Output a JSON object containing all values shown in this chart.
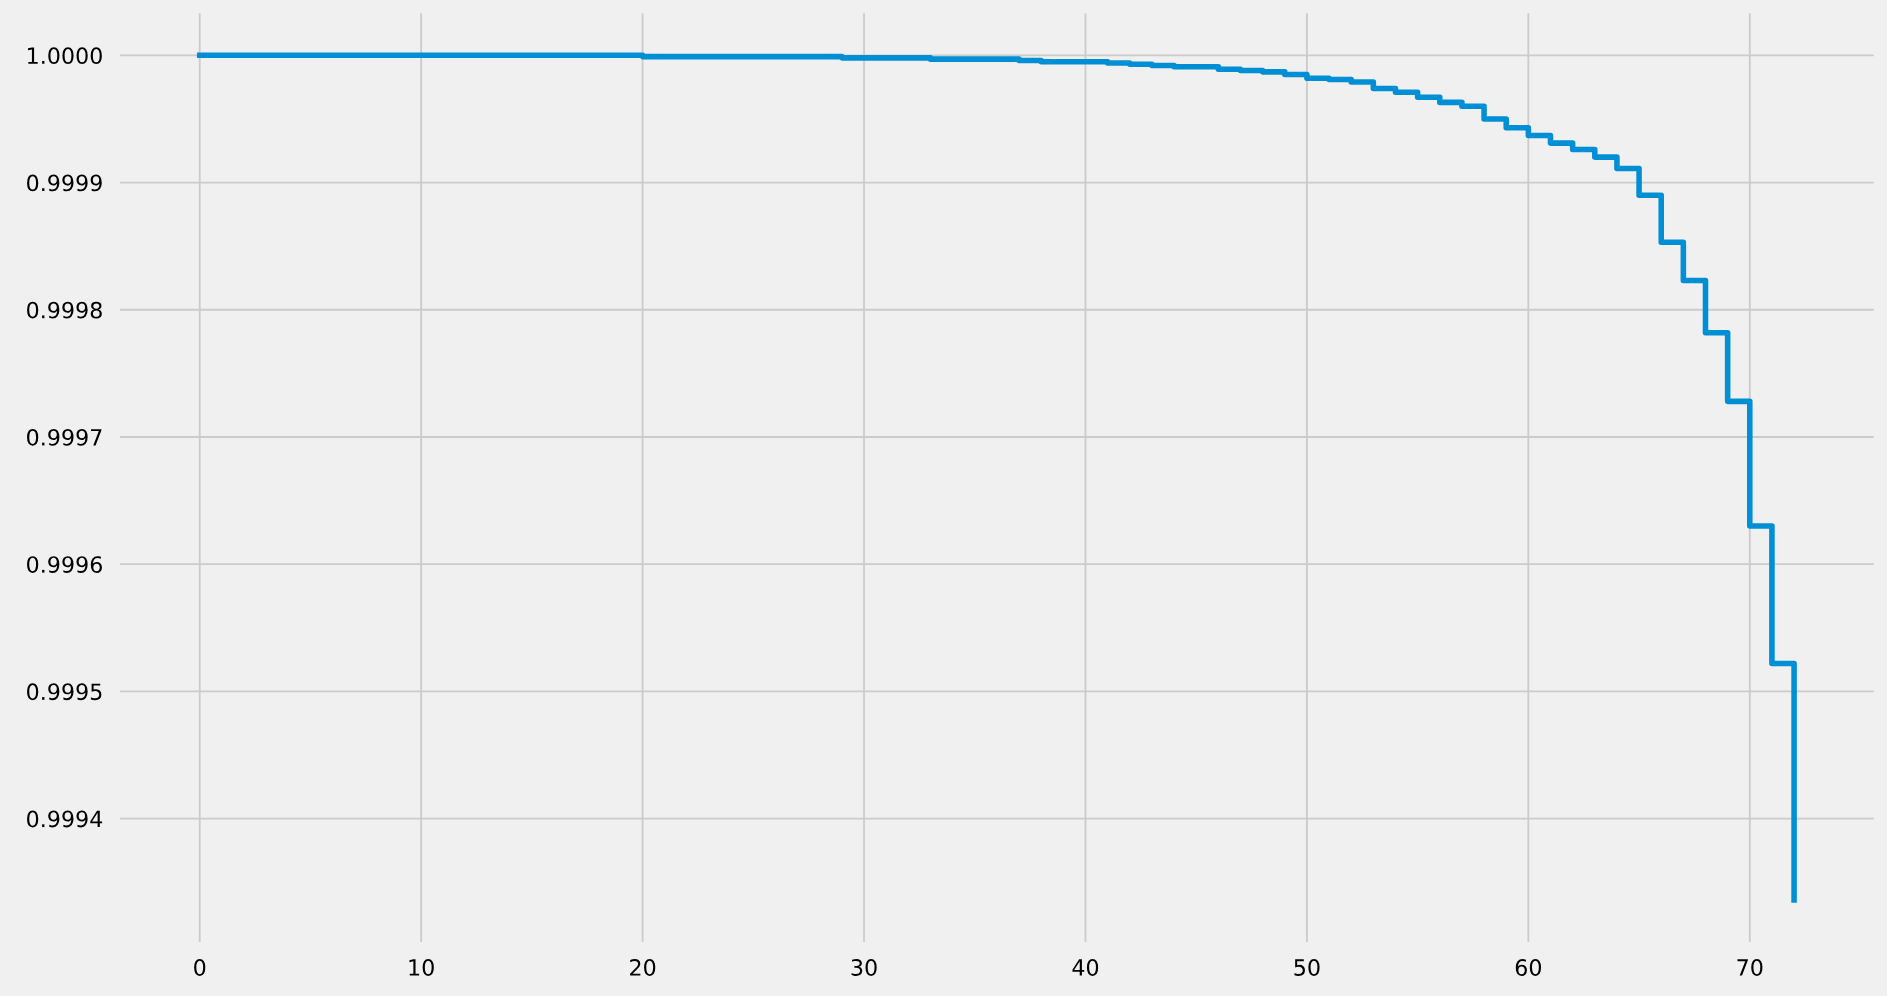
{
  "chart_data": {
    "type": "step",
    "x": [
      0,
      20,
      29,
      33,
      37,
      38,
      41,
      42,
      43,
      44,
      46,
      47,
      48,
      49,
      50,
      51,
      52,
      53,
      54,
      55,
      56,
      57,
      58,
      59,
      60,
      61,
      62,
      63,
      64,
      65,
      66,
      67,
      68,
      69,
      70,
      71,
      72
    ],
    "series": [
      {
        "color": "#008fd5",
        "values": [
          1.0,
          0.999999,
          0.999998,
          0.999997,
          0.999996,
          0.999995,
          0.999994,
          0.999993,
          0.999992,
          0.999991,
          0.999989,
          0.999988,
          0.999987,
          0.999985,
          0.999982,
          0.999981,
          0.999979,
          0.999974,
          0.999971,
          0.999967,
          0.999963,
          0.99996,
          0.99995,
          0.999943,
          0.999937,
          0.999931,
          0.999926,
          0.99992,
          0.999911,
          0.99989,
          0.999853,
          0.999823,
          0.999782,
          0.999728,
          0.99963,
          0.999522,
          0.999336
        ]
      }
    ],
    "xlim": [
      -3.6,
      75.6
    ],
    "xticks": [
      0,
      10,
      20,
      30,
      40,
      50,
      60,
      70
    ],
    "ylim": [
      0.999303,
      1.000033
    ],
    "yticks": [
      {
        "value": 0.9994,
        "label": "0.9994"
      },
      {
        "value": 0.9995,
        "label": "0.9995"
      },
      {
        "value": 0.9996,
        "label": "0.9996"
      },
      {
        "value": 0.9997,
        "label": "0.9997"
      },
      {
        "value": 0.9998,
        "label": "0.9998"
      },
      {
        "value": 0.9999,
        "label": "0.9999"
      },
      {
        "value": 1.0,
        "label": "1.0000"
      }
    ],
    "grid": true,
    "line_style": "solid"
  }
}
